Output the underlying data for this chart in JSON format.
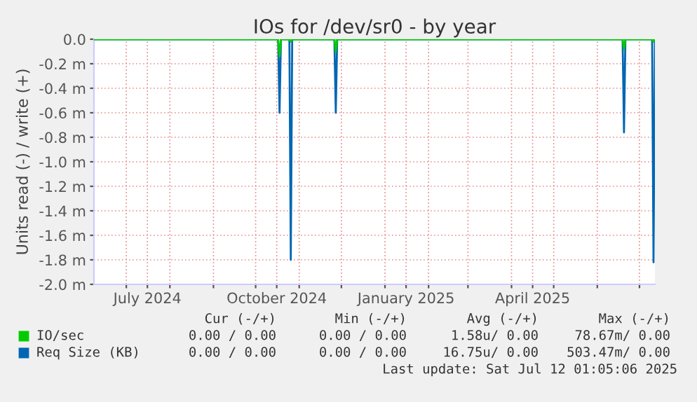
{
  "chart_data": {
    "type": "line",
    "title": "IOs for /dev/sr0 - by year",
    "ylabel": "Units read (-) / write (+)",
    "series": [
      {
        "name": "IO/sec",
        "color": "#00cc00",
        "x": [
          "2024-06-08",
          "2024-10-17",
          "2024-10-18",
          "2024-10-19",
          "2024-10-25",
          "2024-10-26",
          "2024-10-27",
          "2024-11-26",
          "2024-11-27",
          "2024-11-28",
          "2025-06-19",
          "2025-06-20",
          "2025-06-21",
          "2025-07-10",
          "2025-07-11",
          "2025-07-12"
        ],
        "values": [
          0,
          0,
          -0.14,
          0,
          0,
          -0.02,
          0,
          0,
          -0.1,
          0,
          0,
          -0.08,
          0,
          0,
          -0.02,
          0
        ]
      },
      {
        "name": "Req Size (KB)",
        "color": "#0066b3",
        "x": [
          "2024-06-08",
          "2024-10-17",
          "2024-10-18",
          "2024-10-19",
          "2024-10-25",
          "2024-10-26",
          "2024-10-27",
          "2024-11-26",
          "2024-11-27",
          "2024-11-28",
          "2025-06-19",
          "2025-06-20",
          "2025-06-21",
          "2025-07-10",
          "2025-07-11",
          "2025-07-12"
        ],
        "values": [
          0,
          0,
          -0.6,
          0,
          0,
          -1.8,
          0,
          0,
          -0.6,
          0,
          0,
          -0.76,
          0,
          0,
          -1.82,
          0
        ]
      }
    ],
    "xlim": [
      "2024-06-08",
      "2025-07-12"
    ],
    "xticks": [
      {
        "value": "2024-07-01",
        "label": null
      },
      {
        "value": "2024-07-16",
        "label": "July 2024"
      },
      {
        "value": "2024-08-01",
        "label": null
      },
      {
        "value": "2024-09-01",
        "label": null
      },
      {
        "value": "2024-10-01",
        "label": null
      },
      {
        "value": "2024-10-16",
        "label": "October 2024"
      },
      {
        "value": "2024-11-01",
        "label": null
      },
      {
        "value": "2024-12-01",
        "label": null
      },
      {
        "value": "2025-01-01",
        "label": null
      },
      {
        "value": "2025-01-16",
        "label": "January 2025"
      },
      {
        "value": "2025-02-01",
        "label": null
      },
      {
        "value": "2025-03-01",
        "label": null
      },
      {
        "value": "2025-04-01",
        "label": null
      },
      {
        "value": "2025-04-16",
        "label": "April 2025"
      },
      {
        "value": "2025-05-01",
        "label": null
      },
      {
        "value": "2025-06-01",
        "label": null
      },
      {
        "value": "2025-07-01",
        "label": null
      }
    ],
    "ylim": [
      -2.0,
      0.0
    ],
    "yticks": [
      {
        "value": 0.0,
        "label": "0.0"
      },
      {
        "value": -0.2,
        "label": "-0.2 m"
      },
      {
        "value": -0.4,
        "label": "-0.4 m"
      },
      {
        "value": -0.6,
        "label": "-0.6 m"
      },
      {
        "value": -0.8,
        "label": "-0.8 m"
      },
      {
        "value": -1.0,
        "label": "-1.0 m"
      },
      {
        "value": -1.2,
        "label": "-1.2 m"
      },
      {
        "value": -1.4,
        "label": "-1.4 m"
      },
      {
        "value": -1.6,
        "label": "-1.6 m"
      },
      {
        "value": -1.8,
        "label": "-1.8 m"
      },
      {
        "value": -2.0,
        "label": "-2.0 m"
      }
    ],
    "grid": true,
    "legend": "bottom left",
    "annotations": [
      "Cur (-/+)",
      "Min (-/+)",
      "Avg (-/+)",
      "Max (-/+)",
      "0.00 / 0.00",
      "0.00 / 0.00",
      "1.58u/ 0.00",
      "78.67m/ 0.00",
      "0.00 / 0.00",
      "0.00 / 0.00",
      "16.75u/ 0.00",
      "503.47m/ 0.00",
      "Last update: Sat Jul 12 01:05:06 2025"
    ]
  }
}
